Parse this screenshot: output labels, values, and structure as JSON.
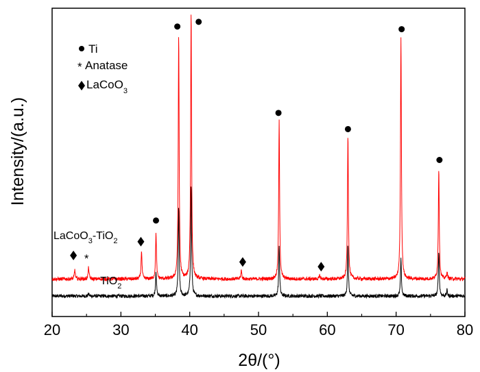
{
  "chart_data": {
    "type": "line",
    "title": "",
    "xlabel": "2θ/(°)",
    "ylabel": "Intensity/(a.u.)",
    "xlim": [
      20,
      80
    ],
    "xticks": [
      "20",
      "30",
      "40",
      "50",
      "60",
      "70",
      "80"
    ],
    "ylim": [
      0,
      1000
    ],
    "yticks_shown": false,
    "grid": false,
    "series": [
      {
        "name": "TiO2",
        "label_main": "TiO",
        "label_sub": "2",
        "color": "#000000",
        "baseline": 30,
        "peaks": [
          {
            "x": 25.3,
            "y": 38
          },
          {
            "x": 35.1,
            "y": 115
          },
          {
            "x": 38.4,
            "y": 335
          },
          {
            "x": 40.2,
            "y": 410
          },
          {
            "x": 53.0,
            "y": 200
          },
          {
            "x": 63.0,
            "y": 200
          },
          {
            "x": 70.7,
            "y": 155
          },
          {
            "x": 76.2,
            "y": 185
          },
          {
            "x": 77.4,
            "y": 50
          }
        ]
      },
      {
        "name": "LaCoO3-TiO2",
        "label_main": "LaCoO",
        "label_sub": "3",
        "label_tail": "-TiO",
        "label_sub2": "2",
        "color": "#ff0000",
        "baseline": 88,
        "peaks": [
          {
            "x": 23.3,
            "y": 120
          },
          {
            "x": 25.3,
            "y": 128
          },
          {
            "x": 33.0,
            "y": 185
          },
          {
            "x": 35.1,
            "y": 245
          },
          {
            "x": 38.4,
            "y": 920
          },
          {
            "x": 40.2,
            "y": 1000
          },
          {
            "x": 47.5,
            "y": 118
          },
          {
            "x": 53.0,
            "y": 625
          },
          {
            "x": 58.9,
            "y": 100
          },
          {
            "x": 63.0,
            "y": 580
          },
          {
            "x": 70.7,
            "y": 915
          },
          {
            "x": 76.2,
            "y": 465
          },
          {
            "x": 77.4,
            "y": 112
          }
        ]
      }
    ],
    "markers": [
      {
        "phase": "Ti",
        "symbol": "circle",
        "x": 35.1,
        "y": 287
      },
      {
        "phase": "Ti",
        "symbol": "circle",
        "x": 38.2,
        "y": 947
      },
      {
        "phase": "Ti",
        "symbol": "circle",
        "x": 41.3,
        "y": 963
      },
      {
        "phase": "Ti",
        "symbol": "circle",
        "x": 52.9,
        "y": 653
      },
      {
        "phase": "Ti",
        "symbol": "circle",
        "x": 63.0,
        "y": 598
      },
      {
        "phase": "Ti",
        "symbol": "circle",
        "x": 70.8,
        "y": 938
      },
      {
        "phase": "Ti",
        "symbol": "circle",
        "x": 76.3,
        "y": 493
      },
      {
        "phase": "Anatase",
        "symbol": "asterisk",
        "x": 25.0,
        "y": 163
      },
      {
        "phase": "LaCoO3",
        "symbol": "diamond",
        "x": 23.1,
        "y": 168
      },
      {
        "phase": "LaCoO3",
        "symbol": "diamond",
        "x": 32.9,
        "y": 215
      },
      {
        "phase": "LaCoO3",
        "symbol": "diamond",
        "x": 47.7,
        "y": 146
      },
      {
        "phase": "LaCoO3",
        "symbol": "diamond",
        "x": 59.1,
        "y": 130
      }
    ],
    "legend": {
      "placement": "top-left",
      "entries": [
        {
          "symbol": "circle",
          "label_main": "Ti",
          "label_sub": ""
        },
        {
          "symbol": "asterisk",
          "label_main": "Anatase",
          "label_sub": ""
        },
        {
          "symbol": "diamond",
          "label_main": "LaCoO",
          "label_sub": "3"
        }
      ]
    }
  }
}
